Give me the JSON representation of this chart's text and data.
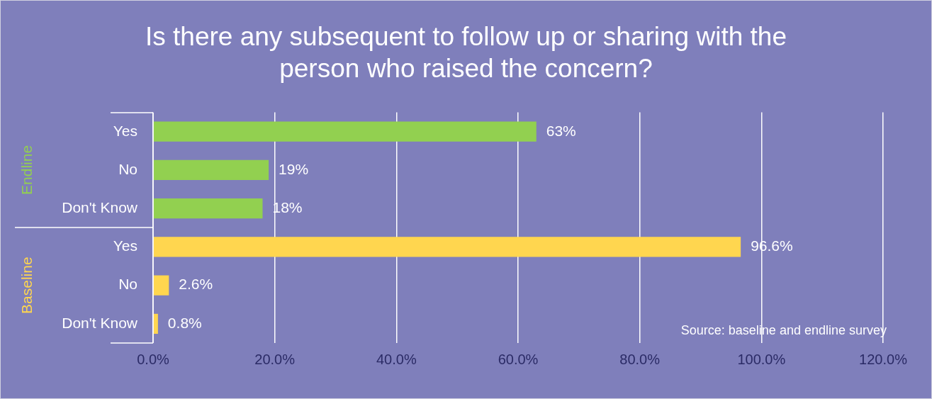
{
  "chart_data": {
    "type": "bar",
    "orientation": "horizontal",
    "title": "Is there any subsequent to follow up or sharing with the person who raised the concern?",
    "categories": [
      "Yes",
      "No",
      "Don't Know",
      "Yes",
      "No",
      "Don't Know"
    ],
    "series": [
      {
        "name": "Endline",
        "color": "#92d050",
        "values": [
          63,
          19,
          18,
          null,
          null,
          null
        ],
        "value_labels": [
          "63%",
          "19%",
          "18%",
          null,
          null,
          null
        ]
      },
      {
        "name": "Baseline",
        "color": "#ffd64f",
        "values": [
          null,
          null,
          null,
          96.6,
          2.6,
          0.8
        ],
        "value_labels": [
          null,
          null,
          null,
          "96.6%",
          "2.6%",
          "0.8%"
        ]
      }
    ],
    "xlim": [
      0,
      120
    ],
    "xticks": [
      {
        "value": 0,
        "label": "0.0%"
      },
      {
        "value": 20,
        "label": "20.0%"
      },
      {
        "value": 40,
        "label": "40.0%"
      },
      {
        "value": 60,
        "label": "60.0%"
      },
      {
        "value": 80,
        "label": "80.0%"
      },
      {
        "value": 100,
        "label": "100.0%"
      },
      {
        "value": 120,
        "label": "120.0%"
      }
    ],
    "grid": "x",
    "legend": false,
    "annotations": [
      "Source: baseline and endline survey"
    ]
  }
}
